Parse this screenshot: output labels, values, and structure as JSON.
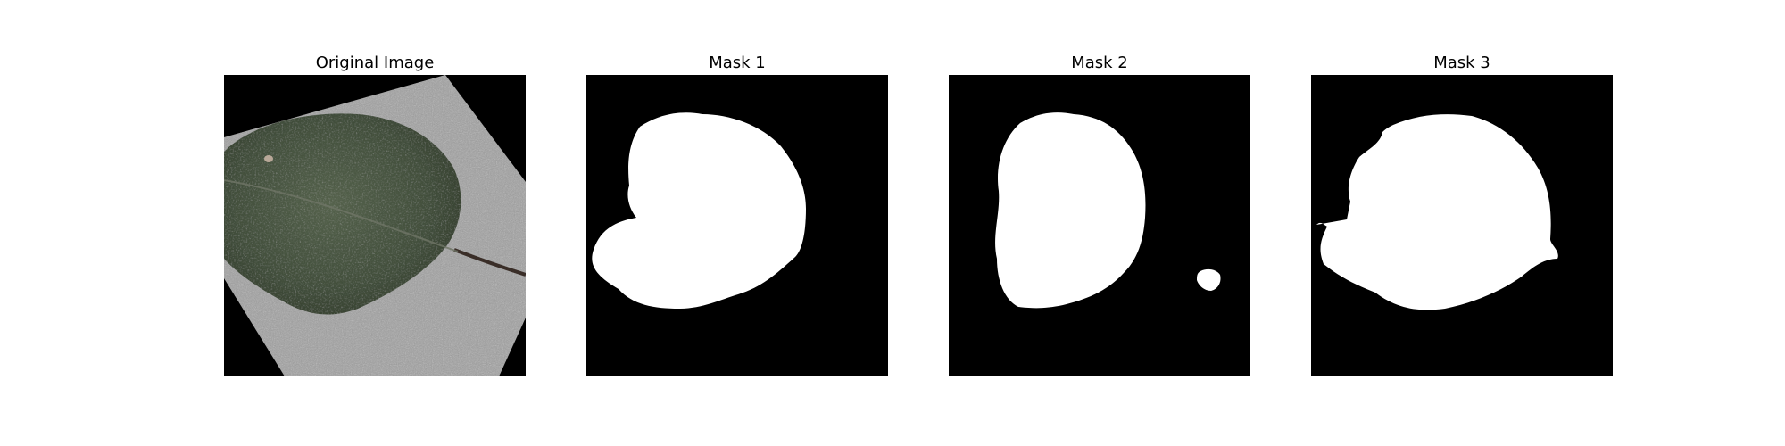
{
  "figure": {
    "panels": [
      {
        "title": "Original Image",
        "content": "leaf-photo"
      },
      {
        "title": "Mask 1",
        "content": "binary-mask"
      },
      {
        "title": "Mask 2",
        "content": "binary-mask"
      },
      {
        "title": "Mask 3",
        "content": "binary-mask"
      }
    ],
    "colors": {
      "background": "#ffffff",
      "mask_background": "#000000",
      "mask_foreground": "#ffffff",
      "leaf_dark": "#3e4a38",
      "leaf_mid": "#55624c",
      "textured_board": "#a9a9a9"
    }
  }
}
